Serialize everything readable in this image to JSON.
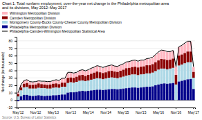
{
  "chart_data": {
    "type": "bar",
    "title": "Chart 1. Total nonfarm employment, over-the-year net change in the Philadelphia metropolitan area",
    "subtitle": "and its divisions, May 2012–May 2017",
    "y_label": "Net change (in thousands)",
    "source": "Source: U.S. Bureau of Labor Statistics",
    "categories": [
      "May'12",
      null,
      null,
      null,
      null,
      null,
      "Nov'12",
      null,
      null,
      null,
      null,
      null,
      "May'13",
      null,
      null,
      null,
      null,
      null,
      "Nov'13",
      null,
      null,
      null,
      null,
      null,
      "May'14",
      null,
      null,
      null,
      null,
      null,
      "Nov'14",
      null,
      null,
      null,
      null,
      null,
      "May'15",
      null,
      null,
      null,
      null,
      null,
      "Nov'15",
      null,
      null,
      null,
      null,
      null,
      "May'16",
      null,
      null,
      null,
      null,
      null,
      "Nov'16",
      null,
      null,
      null,
      null,
      null,
      "May'17"
    ],
    "series": [
      {
        "name": "Wilmington Metropolitan Division",
        "color": "#FFB6C1",
        "values": [
          2.5,
          3.5,
          4.0,
          4.5,
          4.0,
          3.5,
          3.0,
          3.5,
          3.0,
          4.0,
          4.0,
          3.5,
          4.0,
          4.5,
          4.5,
          5.5,
          5.5,
          6.5,
          6.5,
          6.0,
          5.5,
          6.0,
          6.5,
          6.5,
          6.5,
          7.0,
          7.0,
          7.5,
          7.5,
          7.0,
          7.5,
          7.0,
          7.5,
          7.5,
          7.0,
          7.5,
          7.5,
          8.0,
          8.0,
          8.5,
          8.5,
          8.0,
          8.5,
          8.0,
          8.5,
          8.5,
          9.0,
          10.0,
          10.5,
          11.0,
          11.5,
          11.0,
          11.0,
          10.5,
          11.0,
          11.5,
          12.0,
          12.5,
          13.0,
          13.5,
          6.5
        ]
      },
      {
        "name": "Camden Metropolitan Division",
        "color": "#8B0000",
        "values": [
          3.0,
          4.0,
          5.0,
          5.5,
          5.0,
          5.0,
          5.5,
          6.0,
          5.5,
          5.0,
          5.0,
          5.5,
          5.5,
          5.5,
          5.0,
          5.5,
          5.5,
          7.0,
          6.5,
          6.5,
          7.0,
          7.5,
          7.5,
          7.0,
          7.5,
          8.0,
          8.5,
          9.0,
          8.5,
          8.5,
          8.5,
          9.0,
          9.0,
          8.5,
          8.5,
          9.0,
          9.5,
          10.0,
          10.0,
          10.0,
          10.5,
          10.5,
          10.5,
          10.5,
          11.0,
          11.0,
          11.5,
          12.0,
          12.5,
          13.0,
          12.5,
          12.5,
          12.0,
          12.5,
          13.0,
          13.5,
          13.5,
          14.0,
          14.5,
          14.5,
          8.0
        ]
      },
      {
        "name": "Montgomery County-Bucks County-Chester County Metropolitan Division",
        "color": "#ADD8E6",
        "values": [
          5.0,
          8.0,
          10.0,
          10.5,
          9.5,
          10.0,
          9.5,
          10.0,
          10.0,
          10.5,
          9.5,
          9.5,
          10.0,
          10.5,
          9.5,
          10.5,
          10.5,
          13.0,
          13.5,
          13.0,
          13.5,
          14.0,
          14.0,
          13.5,
          14.0,
          14.5,
          15.0,
          15.5,
          15.0,
          14.5,
          15.0,
          15.5,
          15.5,
          15.0,
          15.0,
          15.5,
          16.0,
          17.0,
          17.0,
          17.5,
          17.5,
          17.0,
          17.5,
          17.5,
          18.0,
          18.0,
          18.5,
          19.0,
          20.0,
          20.5,
          20.0,
          19.5,
          20.0,
          20.5,
          21.0,
          21.5,
          22.0,
          22.5,
          23.0,
          22.5,
          15.0
        ]
      },
      {
        "name": "Philadelphia Metropolitan Division",
        "color": "#00008B",
        "values": [
          -1.5,
          5.0,
          7.0,
          7.0,
          6.0,
          5.5,
          6.0,
          6.5,
          6.0,
          5.5,
          6.0,
          6.0,
          6.5,
          6.5,
          7.0,
          7.5,
          7.5,
          10.0,
          10.5,
          10.5,
          11.0,
          12.0,
          12.5,
          12.0,
          12.5,
          13.0,
          13.5,
          14.0,
          14.0,
          13.5,
          14.0,
          14.5,
          15.0,
          15.0,
          14.5,
          15.0,
          15.5,
          16.0,
          16.5,
          17.0,
          17.0,
          16.5,
          17.0,
          17.5,
          18.0,
          18.0,
          18.5,
          20.0,
          21.0,
          22.0,
          22.5,
          22.0,
          22.5,
          23.0,
          0.0,
          25.0,
          26.0,
          27.0,
          28.0,
          28.5,
          15.0
        ]
      },
      {
        "name": "Philadelphia-Camden-Wilmington Metropolitan Statistical Area",
        "color": "#000000",
        "type": "line",
        "values": [
          10.0,
          21.0,
          26.5,
          27.5,
          25.0,
          24.5,
          25.0,
          26.0,
          25.5,
          25.5,
          25.0,
          25.0,
          26.5,
          27.5,
          26.5,
          29.5,
          29.5,
          37.5,
          37.5,
          36.5,
          37.5,
          40.0,
          41.0,
          39.5,
          41.0,
          43.0,
          44.5,
          46.5,
          45.5,
          44.0,
          45.5,
          46.5,
          47.5,
          46.0,
          45.5,
          47.5,
          49.0,
          51.5,
          52.0,
          53.5,
          54.0,
          52.5,
          54.0,
          54.0,
          56.0,
          56.5,
          58.0,
          61.5,
          65.0,
          67.5,
          67.0,
          65.5,
          65.5,
          67.0,
          45.0,
          72.0,
          74.0,
          77.0,
          79.5,
          79.5,
          45.0
        ]
      }
    ],
    "stacked": true,
    "ylim": [
      -10,
      85
    ],
    "yticks": [
      -10,
      0,
      10,
      20,
      30,
      40,
      50,
      60,
      70,
      80
    ],
    "grid": true,
    "legend": "top"
  }
}
